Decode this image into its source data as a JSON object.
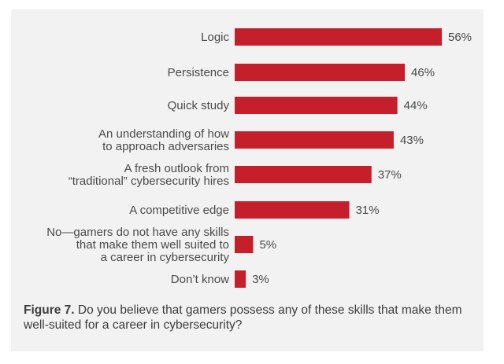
{
  "chart_data": {
    "type": "bar",
    "orientation": "horizontal",
    "categories": [
      [
        "Logic"
      ],
      [
        "Persistence"
      ],
      [
        "Quick study"
      ],
      [
        "An understanding of how",
        "to approach adversaries"
      ],
      [
        "A fresh outlook from",
        "“traditional” cybersecurity hires"
      ],
      [
        "A competitive edge"
      ],
      [
        "No—gamers do not have any skills",
        "that make them well suited to",
        "a career in cybersecurity"
      ],
      [
        "Don’t know"
      ]
    ],
    "values": [
      56,
      46,
      44,
      43,
      37,
      31,
      5,
      3
    ],
    "value_labels": [
      "56%",
      "46%",
      "44%",
      "43%",
      "37%",
      "31%",
      "5%",
      "3%"
    ],
    "xlim": [
      0,
      56
    ],
    "grid": false,
    "bar_color": "#c41f2b"
  },
  "caption": {
    "figure_label": "Figure 7.",
    "text": " Do you believe that gamers possess any of these skills that make them well-suited for a career in cybersecurity?"
  },
  "colors": {
    "background": "#f2f2f2",
    "text": "#4a4a4a"
  }
}
